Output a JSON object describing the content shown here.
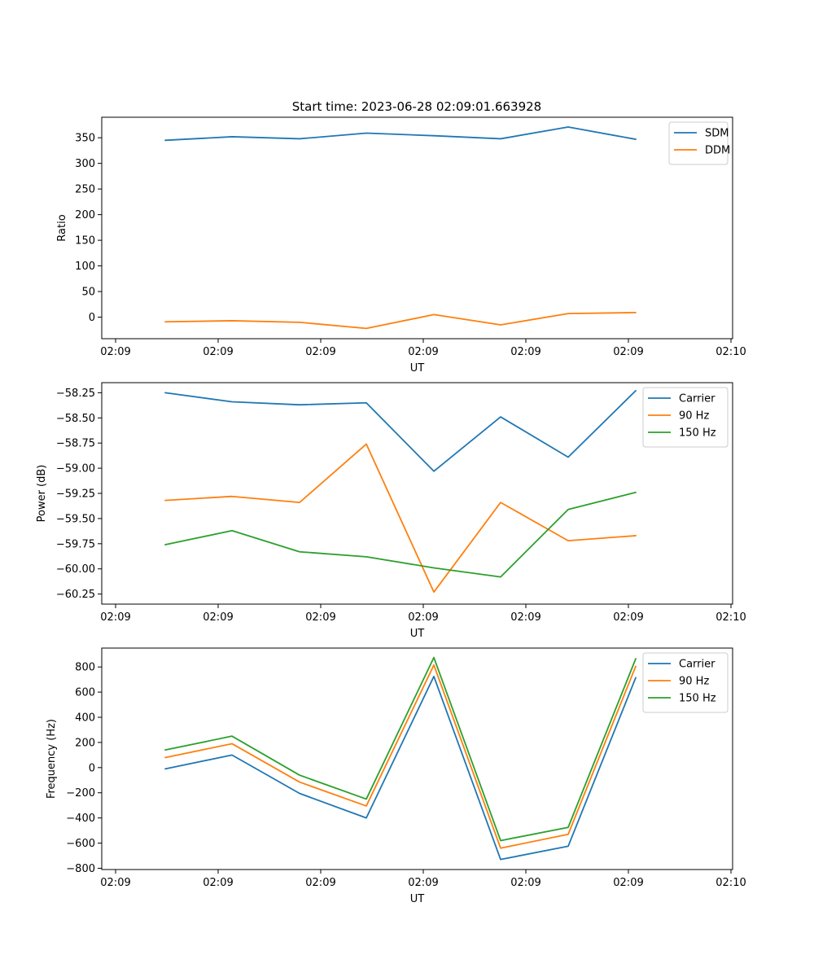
{
  "figure": {
    "title": "Start time: 2023-06-28 02:09:01.663928"
  },
  "chart_data": [
    {
      "type": "line",
      "title": "Start time: 2023-06-28 02:09:01.663928",
      "xlabel": "UT",
      "ylabel": "Ratio",
      "x_tick_labels": [
        "02:09",
        "02:09",
        "02:09",
        "02:09",
        "02:09",
        "02:09",
        "02:10"
      ],
      "ylim": [
        -42,
        390
      ],
      "y_ticks": [
        0,
        50,
        100,
        150,
        200,
        250,
        300,
        350
      ],
      "legend_position": "top-right",
      "grid": false,
      "series": [
        {
          "name": "SDM",
          "color": "#1f77b4",
          "values": [
            345,
            352,
            348,
            359,
            354,
            348,
            371,
            347
          ]
        },
        {
          "name": "DDM",
          "color": "#ff7f0e",
          "values": [
            -9,
            -7,
            -10,
            -22,
            5,
            -15,
            7,
            9
          ]
        }
      ]
    },
    {
      "type": "line",
      "title": "",
      "xlabel": "UT",
      "ylabel": "Power (dB)",
      "x_tick_labels": [
        "02:09",
        "02:09",
        "02:09",
        "02:09",
        "02:09",
        "02:09",
        "02:10"
      ],
      "ylim": [
        -60.35,
        -58.15
      ],
      "y_ticks": [
        -58.25,
        -58.5,
        -58.75,
        -59.0,
        -59.25,
        -59.5,
        -59.75,
        -60.0,
        -60.25
      ],
      "y_tick_labels": [
        "−58.25",
        "−58.50",
        "−58.75",
        "−59.00",
        "−59.25",
        "−59.50",
        "−59.75",
        "−60.00",
        "−60.25"
      ],
      "legend_position": "top-right",
      "grid": false,
      "series": [
        {
          "name": "Carrier",
          "color": "#1f77b4",
          "values": [
            -58.25,
            -58.34,
            -58.37,
            -58.35,
            -59.03,
            -58.49,
            -58.89,
            -58.23
          ]
        },
        {
          "name": "90 Hz",
          "color": "#ff7f0e",
          "values": [
            -59.32,
            -59.28,
            -59.34,
            -58.76,
            -60.23,
            -59.34,
            -59.72,
            -59.67
          ]
        },
        {
          "name": "150 Hz",
          "color": "#2ca02c",
          "values": [
            -59.76,
            -59.62,
            -59.83,
            -59.88,
            -59.99,
            -60.08,
            -59.41,
            -59.24
          ]
        }
      ]
    },
    {
      "type": "line",
      "title": "",
      "xlabel": "UT",
      "ylabel": "Frequency (Hz)",
      "x_tick_labels": [
        "02:09",
        "02:09",
        "02:09",
        "02:09",
        "02:09",
        "02:09",
        "02:10"
      ],
      "ylim": [
        -810,
        950
      ],
      "y_ticks": [
        -800,
        -600,
        -400,
        -200,
        0,
        200,
        400,
        600,
        800
      ],
      "y_tick_labels": [
        "−800",
        "−600",
        "−400",
        "−200",
        "0",
        "200",
        "400",
        "600",
        "800"
      ],
      "legend_position": "top-right",
      "grid": false,
      "series": [
        {
          "name": "Carrier",
          "color": "#1f77b4",
          "values": [
            -10,
            100,
            -205,
            -400,
            725,
            -730,
            -625,
            715
          ]
        },
        {
          "name": "90 Hz",
          "color": "#ff7f0e",
          "values": [
            80,
            190,
            -115,
            -305,
            815,
            -640,
            -530,
            805
          ]
        },
        {
          "name": "150 Hz",
          "color": "#2ca02c",
          "values": [
            140,
            250,
            -60,
            -250,
            875,
            -580,
            -475,
            865
          ]
        }
      ]
    }
  ]
}
